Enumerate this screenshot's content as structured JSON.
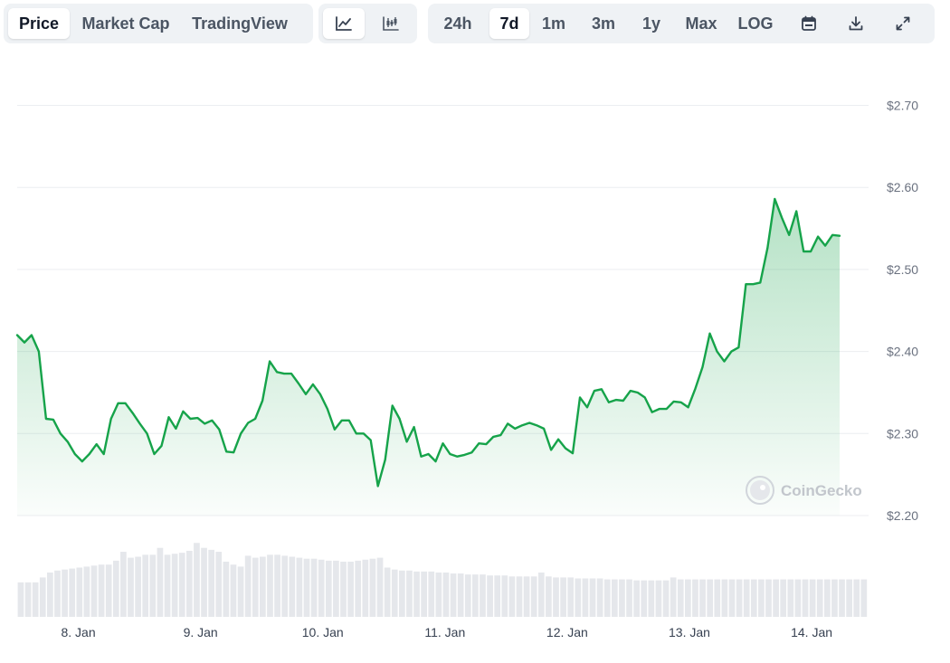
{
  "toolbar": {
    "metric_tabs": [
      "Price",
      "Market Cap",
      "TradingView"
    ],
    "active_metric": "Price",
    "chart_types": [
      {
        "icon": "line-chart-icon"
      },
      {
        "icon": "candlestick-chart-icon"
      }
    ],
    "ranges": [
      "24h",
      "7d",
      "1m",
      "3m",
      "1y",
      "Max",
      "LOG"
    ],
    "active_range": "7d",
    "actions": [
      {
        "icon": "calendar-icon"
      },
      {
        "icon": "download-icon"
      },
      {
        "icon": "expand-icon"
      }
    ]
  },
  "watermark": "CoinGecko",
  "colors": {
    "line": "#16a34a",
    "fill_top": "#bfe9cc",
    "volume": "#e5e7eb",
    "grid": "#eceef1"
  },
  "chart_data": {
    "type": "line",
    "y_tick_labels": [
      "$2.70",
      "$2.60",
      "$2.50",
      "$2.40",
      "$2.30",
      "$2.20"
    ],
    "y_ticks": [
      2.7,
      2.6,
      2.5,
      2.4,
      2.3,
      2.2
    ],
    "ylim": [
      2.2,
      2.705
    ],
    "xlim": [
      "2025-01-07T12:00",
      "2025-01-14T11:00"
    ],
    "x_tick_labels": [
      "8. Jan",
      "9. Jan",
      "10. Jan",
      "11. Jan",
      "12. Jan",
      "13. Jan",
      "14. Jan"
    ],
    "x_ticks": [
      "2025-01-08T00:00",
      "2025-01-09T00:00",
      "2025-01-10T00:00",
      "2025-01-11T00:00",
      "2025-01-12T00:00",
      "2025-01-13T00:00",
      "2025-01-14T00:00"
    ],
    "grid": true,
    "series": [
      {
        "values": [
          [
            "2025-01-07T12:00",
            2.42
          ],
          [
            "2025-01-07T13:25",
            2.411
          ],
          [
            "2025-01-07T14:50",
            2.42
          ],
          [
            "2025-01-07T16:15",
            2.4
          ],
          [
            "2025-01-07T17:40",
            2.318
          ],
          [
            "2025-01-07T19:05",
            2.317
          ],
          [
            "2025-01-07T20:30",
            2.3
          ],
          [
            "2025-01-07T21:55",
            2.29
          ],
          [
            "2025-01-07T23:20",
            2.275
          ],
          [
            "2025-01-08T00:45",
            2.266
          ],
          [
            "2025-01-08T02:10",
            2.275
          ],
          [
            "2025-01-08T03:35",
            2.287
          ],
          [
            "2025-01-08T05:00",
            2.275
          ],
          [
            "2025-01-08T06:25",
            2.318
          ],
          [
            "2025-01-08T07:50",
            2.337
          ],
          [
            "2025-01-08T09:15",
            2.337
          ],
          [
            "2025-01-08T10:40",
            2.325
          ],
          [
            "2025-01-08T12:05",
            2.312
          ],
          [
            "2025-01-08T13:30",
            2.3
          ],
          [
            "2025-01-08T14:55",
            2.275
          ],
          [
            "2025-01-08T16:20",
            2.285
          ],
          [
            "2025-01-08T17:45",
            2.32
          ],
          [
            "2025-01-08T19:10",
            2.306
          ],
          [
            "2025-01-08T20:35",
            2.327
          ],
          [
            "2025-01-08T22:00",
            2.318
          ],
          [
            "2025-01-08T23:25",
            2.319
          ],
          [
            "2025-01-09T00:50",
            2.312
          ],
          [
            "2025-01-09T02:15",
            2.316
          ],
          [
            "2025-01-09T03:40",
            2.305
          ],
          [
            "2025-01-09T05:05",
            2.278
          ],
          [
            "2025-01-09T06:30",
            2.277
          ],
          [
            "2025-01-09T07:55",
            2.3
          ],
          [
            "2025-01-09T09:20",
            2.313
          ],
          [
            "2025-01-09T10:45",
            2.318
          ],
          [
            "2025-01-09T12:10",
            2.34
          ],
          [
            "2025-01-09T13:35",
            2.388
          ],
          [
            "2025-01-09T15:00",
            2.375
          ],
          [
            "2025-01-09T16:25",
            2.373
          ],
          [
            "2025-01-09T17:50",
            2.373
          ],
          [
            "2025-01-09T19:15",
            2.361
          ],
          [
            "2025-01-09T20:40",
            2.348
          ],
          [
            "2025-01-09T22:05",
            2.36
          ],
          [
            "2025-01-09T23:30",
            2.348
          ],
          [
            "2025-01-10T00:55",
            2.33
          ],
          [
            "2025-01-10T02:20",
            2.305
          ],
          [
            "2025-01-10T03:45",
            2.316
          ],
          [
            "2025-01-10T05:10",
            2.316
          ],
          [
            "2025-01-10T06:35",
            2.3
          ],
          [
            "2025-01-10T08:00",
            2.3
          ],
          [
            "2025-01-10T09:25",
            2.292
          ],
          [
            "2025-01-10T10:50",
            2.236
          ],
          [
            "2025-01-10T12:15",
            2.268
          ],
          [
            "2025-01-10T13:40",
            2.334
          ],
          [
            "2025-01-10T15:05",
            2.318
          ],
          [
            "2025-01-10T16:30",
            2.29
          ],
          [
            "2025-01-10T17:55",
            2.308
          ],
          [
            "2025-01-10T19:20",
            2.272
          ],
          [
            "2025-01-10T20:45",
            2.275
          ],
          [
            "2025-01-10T22:10",
            2.266
          ],
          [
            "2025-01-10T23:35",
            2.288
          ],
          [
            "2025-01-11T01:00",
            2.275
          ],
          [
            "2025-01-11T02:25",
            2.272
          ],
          [
            "2025-01-11T03:50",
            2.274
          ],
          [
            "2025-01-11T05:15",
            2.277
          ],
          [
            "2025-01-11T06:40",
            2.288
          ],
          [
            "2025-01-11T08:05",
            2.287
          ],
          [
            "2025-01-11T09:30",
            2.296
          ],
          [
            "2025-01-11T10:55",
            2.298
          ],
          [
            "2025-01-11T12:20",
            2.312
          ],
          [
            "2025-01-11T13:45",
            2.306
          ],
          [
            "2025-01-11T15:10",
            2.31
          ],
          [
            "2025-01-11T16:35",
            2.313
          ],
          [
            "2025-01-11T18:00",
            2.31
          ],
          [
            "2025-01-11T19:25",
            2.306
          ],
          [
            "2025-01-11T20:50",
            2.28
          ],
          [
            "2025-01-11T22:15",
            2.293
          ],
          [
            "2025-01-11T23:40",
            2.282
          ],
          [
            "2025-01-12T01:05",
            2.276
          ],
          [
            "2025-01-12T02:30",
            2.344
          ],
          [
            "2025-01-12T03:55",
            2.332
          ],
          [
            "2025-01-12T05:20",
            2.352
          ],
          [
            "2025-01-12T06:45",
            2.354
          ],
          [
            "2025-01-12T08:10",
            2.338
          ],
          [
            "2025-01-12T09:35",
            2.341
          ],
          [
            "2025-01-12T11:00",
            2.34
          ],
          [
            "2025-01-12T12:25",
            2.352
          ],
          [
            "2025-01-12T13:50",
            2.35
          ],
          [
            "2025-01-12T15:15",
            2.344
          ],
          [
            "2025-01-12T16:40",
            2.326
          ],
          [
            "2025-01-12T18:05",
            2.33
          ],
          [
            "2025-01-12T19:30",
            2.33
          ],
          [
            "2025-01-12T20:55",
            2.339
          ],
          [
            "2025-01-12T22:20",
            2.338
          ],
          [
            "2025-01-12T23:45",
            2.332
          ],
          [
            "2025-01-13T01:10",
            2.355
          ],
          [
            "2025-01-13T02:35",
            2.381
          ],
          [
            "2025-01-13T04:00",
            2.422
          ],
          [
            "2025-01-13T05:25",
            2.4
          ],
          [
            "2025-01-13T06:50",
            2.388
          ],
          [
            "2025-01-13T08:15",
            2.4
          ],
          [
            "2025-01-13T09:40",
            2.405
          ],
          [
            "2025-01-13T11:05",
            2.482
          ],
          [
            "2025-01-13T12:30",
            2.482
          ],
          [
            "2025-01-13T13:55",
            2.484
          ],
          [
            "2025-01-13T15:20",
            2.526
          ],
          [
            "2025-01-13T16:45",
            2.586
          ],
          [
            "2025-01-13T18:10",
            2.563
          ],
          [
            "2025-01-13T19:35",
            2.542
          ],
          [
            "2025-01-13T21:00",
            2.571
          ],
          [
            "2025-01-13T22:25",
            2.522
          ],
          [
            "2025-01-13T23:50",
            2.522
          ],
          [
            "2025-01-14T01:15",
            2.54
          ],
          [
            "2025-01-14T02:40",
            2.529
          ],
          [
            "2025-01-14T04:05",
            2.542
          ],
          [
            "2025-01-14T05:30",
            2.541
          ]
        ]
      }
    ],
    "volume_relative": [
      0.35,
      0.35,
      0.35,
      0.4,
      0.45,
      0.47,
      0.48,
      0.49,
      0.5,
      0.51,
      0.52,
      0.53,
      0.53,
      0.57,
      0.66,
      0.6,
      0.61,
      0.63,
      0.63,
      0.7,
      0.63,
      0.64,
      0.65,
      0.67,
      0.75,
      0.7,
      0.68,
      0.66,
      0.56,
      0.53,
      0.51,
      0.62,
      0.6,
      0.61,
      0.63,
      0.63,
      0.62,
      0.61,
      0.6,
      0.59,
      0.59,
      0.58,
      0.57,
      0.57,
      0.56,
      0.56,
      0.57,
      0.58,
      0.59,
      0.6,
      0.5,
      0.48,
      0.47,
      0.47,
      0.46,
      0.46,
      0.46,
      0.45,
      0.45,
      0.44,
      0.44,
      0.43,
      0.43,
      0.43,
      0.42,
      0.42,
      0.42,
      0.41,
      0.41,
      0.41,
      0.41,
      0.45,
      0.41,
      0.4,
      0.4,
      0.4,
      0.39,
      0.39,
      0.39,
      0.39,
      0.38,
      0.38,
      0.38,
      0.38,
      0.37,
      0.37,
      0.37,
      0.37,
      0.37,
      0.4,
      0.38,
      0.38,
      0.38,
      0.38,
      0.38,
      0.38,
      0.38,
      0.38,
      0.38,
      0.38,
      0.38,
      0.38,
      0.38,
      0.38,
      0.38,
      0.38,
      0.38,
      0.38,
      0.38,
      0.38,
      0.38,
      0.38,
      0.38,
      0.38,
      0.38,
      0.38
    ]
  }
}
